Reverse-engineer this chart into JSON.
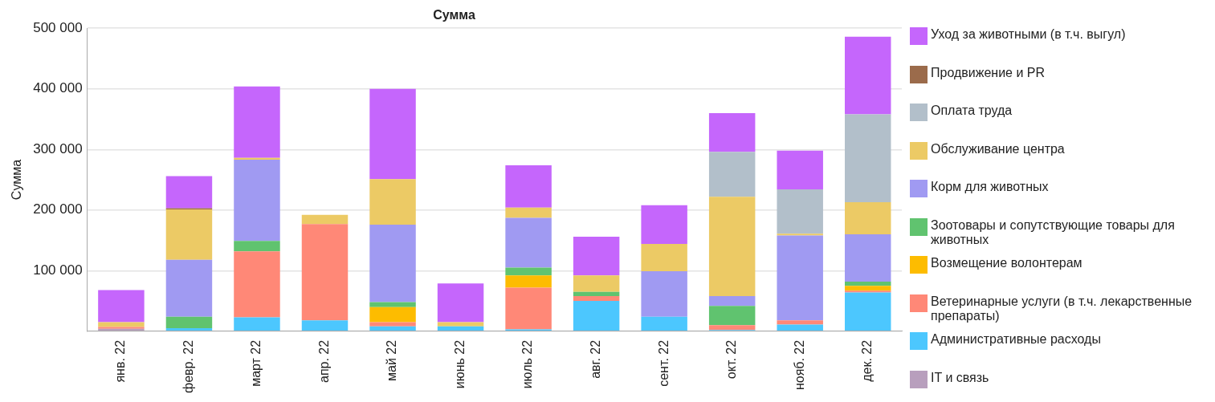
{
  "chart_data": {
    "type": "bar",
    "title": "Сумма",
    "ylabel": "Сумма",
    "stacked": true,
    "grid": "y",
    "legend": "right",
    "categories": [
      "янв. 22",
      "февр. 22",
      "март 22",
      "апр. 22",
      "май 22",
      "июнь 22",
      "июль 22",
      "авг. 22",
      "сент. 22",
      "окт. 22",
      "нояб. 22",
      "дек. 22"
    ],
    "ylim": [
      0,
      500000
    ],
    "yticks": [
      {
        "value": 0,
        "label": null
      },
      {
        "value": 100000,
        "label": "100 000"
      },
      {
        "value": 200000,
        "label": "200 000"
      },
      {
        "value": 300000,
        "label": "300 000"
      },
      {
        "value": 400000,
        "label": "400 000"
      },
      {
        "value": 500000,
        "label": "500 000"
      }
    ],
    "series": [
      {
        "name": "IT и связь",
        "color": "#b89fbd",
        "values": [
          4000,
          null,
          null,
          null,
          null,
          null,
          null,
          null,
          null,
          null,
          null,
          null
        ]
      },
      {
        "name": "Административные расходы",
        "color": "#4cc7fe",
        "values": [
          null,
          5000,
          23000,
          18000,
          8000,
          8000,
          3000,
          50000,
          24000,
          2000,
          11000,
          64000
        ]
      },
      {
        "name": "Ветеринарные услуги (в т.ч. лекарственные препараты)",
        "color": "#ff8877",
        "values": [
          3000,
          null,
          109000,
          159000,
          7000,
          null,
          69000,
          8000,
          null,
          8000,
          7000,
          3000
        ]
      },
      {
        "name": "Возмещение волонтерам",
        "color": "#fdbc00",
        "values": [
          null,
          null,
          null,
          null,
          25000,
          null,
          20000,
          null,
          null,
          null,
          null,
          8000
        ]
      },
      {
        "name": "Зоотовары и сопутствующие товары для животных",
        "color": "#60c36f",
        "values": [
          null,
          19000,
          17000,
          null,
          8000,
          null,
          13000,
          7000,
          null,
          32000,
          null,
          7000
        ]
      },
      {
        "name": "Корм для животных",
        "color": "#a09af2",
        "values": [
          null,
          94000,
          134000,
          null,
          128000,
          null,
          82000,
          null,
          75000,
          16000,
          140000,
          78000
        ]
      },
      {
        "name": "Обслуживание центра",
        "color": "#ecca65",
        "values": [
          8000,
          83000,
          3000,
          15000,
          75000,
          7000,
          17000,
          27000,
          45000,
          164000,
          3000,
          53000
        ]
      },
      {
        "name": "Оплата труда",
        "color": "#b2bfca",
        "values": [
          null,
          null,
          null,
          null,
          null,
          null,
          null,
          null,
          null,
          74000,
          73000,
          145000
        ]
      },
      {
        "name": "Продвижение и PR",
        "color": "#9b6b4b",
        "values": [
          null,
          2000,
          null,
          null,
          null,
          null,
          null,
          null,
          null,
          null,
          null,
          null
        ]
      },
      {
        "name": "Уход за животными (в т.ч. выгул)",
        "color": "#c566fc",
        "values": [
          53000,
          53000,
          118000,
          null,
          149000,
          64000,
          70000,
          64000,
          64000,
          64000,
          64000,
          128000
        ]
      }
    ]
  }
}
